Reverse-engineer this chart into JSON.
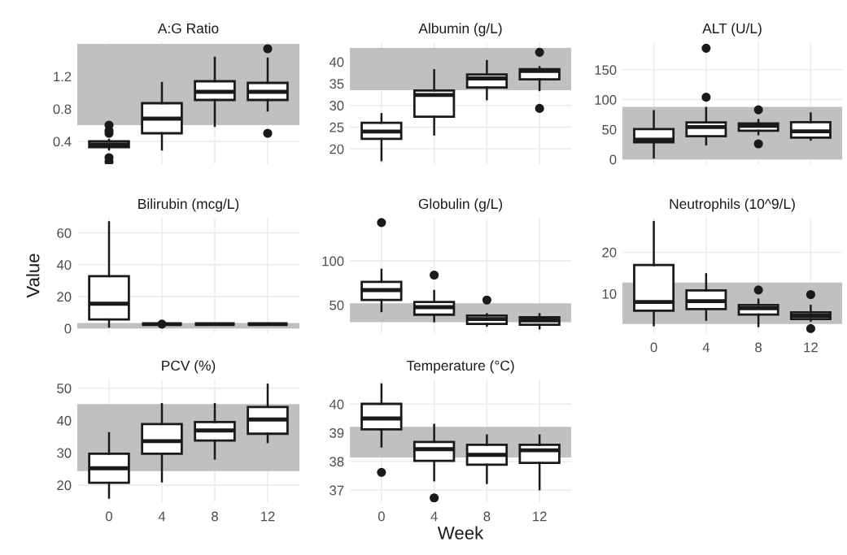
{
  "chart_data": [
    {
      "type": "box",
      "title": "A:G Ratio",
      "categories": [
        "0",
        "4",
        "8",
        "12"
      ],
      "ylim": [
        0.12,
        1.62
      ],
      "yticks": [
        0.4,
        0.8,
        1.2
      ],
      "tick_labels": "y",
      "grid": true,
      "bands": [
        {
          "axis": "y",
          "from": 0.6,
          "to": 1.6,
          "color": "#c0c0c0"
        }
      ],
      "boxes": [
        {
          "low": 0.3,
          "q1": 0.33,
          "median": 0.36,
          "q3": 0.4,
          "high": 0.42,
          "outliers": [
            0.15,
            0.2,
            0.5,
            0.53,
            0.6
          ]
        },
        {
          "low": 0.3,
          "q1": 0.5,
          "median": 0.68,
          "q3": 0.87,
          "high": 1.12
        },
        {
          "low": 0.59,
          "q1": 0.91,
          "median": 1.01,
          "q3": 1.14,
          "high": 1.43
        },
        {
          "low": 0.78,
          "q1": 0.91,
          "median": 1.01,
          "q3": 1.12,
          "high": 1.42,
          "outliers": [
            0.5,
            1.54
          ]
        }
      ]
    },
    {
      "type": "box",
      "title": "Albumin (g/L)",
      "categories": [
        "0",
        "4",
        "8",
        "12"
      ],
      "ylim": [
        16.5,
        44.5
      ],
      "yticks": [
        20,
        25,
        30,
        35,
        40
      ],
      "tick_labels": "y",
      "grid": true,
      "bands": [
        {
          "axis": "y",
          "from": 33.5,
          "to": 43.2,
          "color": "#c0c0c0"
        }
      ],
      "boxes": [
        {
          "low": 17.4,
          "q1": 22.3,
          "median": 24,
          "q3": 26,
          "high": 28
        },
        {
          "low": 23.3,
          "q1": 27.4,
          "median": 32.4,
          "q3": 33.4,
          "high": 38.1
        },
        {
          "low": 31.4,
          "q1": 34.1,
          "median": 36.2,
          "q3": 37.1,
          "high": 40.2
        },
        {
          "low": 33.5,
          "q1": 36,
          "median": 37.9,
          "q3": 38.3,
          "high": 38.8,
          "outliers": [
            29.3,
            42.2
          ]
        }
      ]
    },
    {
      "type": "box",
      "title": "ALT (U/L)",
      "categories": [
        "0",
        "4",
        "8",
        "12"
      ],
      "ylim": [
        -8,
        196
      ],
      "yticks": [
        0,
        50,
        100,
        150
      ],
      "tick_labels": "y",
      "grid": true,
      "bands": [
        {
          "axis": "y",
          "from": 0,
          "to": 88,
          "color": "#c0c0c0"
        }
      ],
      "boxes": [
        {
          "low": 3,
          "q1": 28.5,
          "median": 33,
          "q3": 50.7,
          "high": 80.7
        },
        {
          "low": 25,
          "q1": 38.7,
          "median": 54,
          "q3": 62,
          "high": 86,
          "outliers": [
            104,
            186
          ]
        },
        {
          "low": 42,
          "q1": 48,
          "median": 56,
          "q3": 60,
          "high": 66,
          "outliers": [
            26,
            83
          ]
        },
        {
          "low": 33,
          "q1": 36.4,
          "median": 47,
          "q3": 62.3,
          "high": 77
        }
      ]
    },
    {
      "type": "box",
      "title": "Bilirubin (mcg/L)",
      "ylabel": "Value",
      "categories": [
        "0",
        "4",
        "8",
        "12"
      ],
      "ylim": [
        -3,
        69.5
      ],
      "yticks": [
        0,
        20,
        40,
        60
      ],
      "tick_labels": "y",
      "grid": true,
      "bands": [
        {
          "axis": "y",
          "from": 0,
          "to": 3.4,
          "color": "#c0c0c0"
        }
      ],
      "boxes": [
        {
          "low": 1.1,
          "q1": 5.6,
          "median": 15.5,
          "q3": 32.8,
          "high": 66.7
        },
        {
          "low": 2.7,
          "q1": 2.7,
          "median": 2.7,
          "q3": 2.7,
          "high": 2.7,
          "outliers": [
            2.7
          ]
        },
        {
          "low": 2.7,
          "q1": 2.7,
          "median": 2.7,
          "q3": 2.7,
          "high": 2.7
        },
        {
          "low": 2.7,
          "q1": 2.7,
          "median": 2.7,
          "q3": 2.7,
          "high": 2.7
        }
      ]
    },
    {
      "type": "box",
      "title": "Globulin (g/L)",
      "categories": [
        "0",
        "4",
        "8",
        "12"
      ],
      "ylim": [
        18,
        149
      ],
      "yticks": [
        50,
        100
      ],
      "tick_labels": "y",
      "grid": true,
      "bands": [
        {
          "axis": "y",
          "from": 30.5,
          "to": 52,
          "color": "#c0c0c0"
        }
      ],
      "boxes": [
        {
          "low": 43,
          "q1": 55.8,
          "median": 66.9,
          "q3": 76.2,
          "high": 90,
          "outliers": [
            143.6
          ]
        },
        {
          "low": 31.5,
          "q1": 39,
          "median": 47.5,
          "q3": 53.5,
          "high": 66,
          "outliers": [
            84
          ]
        },
        {
          "low": 26.5,
          "q1": 28.5,
          "median": 34,
          "q3": 37.9,
          "high": 39.6,
          "outliers": [
            55.6
          ]
        },
        {
          "low": 23.4,
          "q1": 27.6,
          "median": 32.5,
          "q3": 36,
          "high": 39.6
        }
      ]
    },
    {
      "type": "box",
      "title": "Neutrophils (10^9/L)",
      "categories": [
        "0",
        "4",
        "8",
        "12"
      ],
      "ylim": [
        0.5,
        28.3
      ],
      "yticks": [
        10,
        20
      ],
      "grid": true,
      "bands": [
        {
          "axis": "y",
          "from": 2.7,
          "to": 12.7,
          "color": "#c0c0c0"
        }
      ],
      "boxes": [
        {
          "low": 2.4,
          "q1": 5.9,
          "median": 8,
          "q3": 16.9,
          "high": 27.3
        },
        {
          "low": 3.7,
          "q1": 6.3,
          "median": 8.2,
          "q3": 10.8,
          "high": 14.7
        },
        {
          "low": 2.2,
          "q1": 5,
          "median": 6.5,
          "q3": 7.3,
          "high": 8.6,
          "outliers": [
            10.9
          ]
        },
        {
          "low": 3.5,
          "q1": 3.9,
          "median": 4.7,
          "q3": 5.5,
          "high": 7.1,
          "outliers": [
            1.6,
            9.8
          ]
        }
      ]
    },
    {
      "type": "box",
      "title": "PCV (%)",
      "categories": [
        "0",
        "4",
        "8",
        "12"
      ],
      "ylim": [
        14.7,
        52.7
      ],
      "yticks": [
        20,
        30,
        40,
        50
      ],
      "grid": true,
      "bands": [
        {
          "axis": "y",
          "from": 24.3,
          "to": 45.1,
          "color": "#c0c0c0"
        }
      ],
      "boxes": [
        {
          "low": 16.1,
          "q1": 20.7,
          "median": 25.2,
          "q3": 29.7,
          "high": 36.1
        },
        {
          "low": 21.1,
          "q1": 29.7,
          "median": 33.6,
          "q3": 38.9,
          "high": 45.1
        },
        {
          "low": 28.2,
          "q1": 33.8,
          "median": 36.9,
          "q3": 39.5,
          "high": 45.1
        },
        {
          "low": 33.3,
          "q1": 35.9,
          "median": 40.3,
          "q3": 44.2,
          "high": 51.1
        }
      ]
    },
    {
      "type": "box",
      "title": "Temperature (°C)",
      "xlabel": "Week",
      "categories": [
        "0",
        "4",
        "8",
        "12"
      ],
      "ylim": [
        36.58,
        40.86
      ],
      "yticks": [
        37,
        38,
        39,
        40
      ],
      "grid": true,
      "bands": [
        {
          "axis": "y",
          "from": 38.14,
          "to": 39.21,
          "color": "#c0c0c0"
        }
      ],
      "boxes": [
        {
          "low": 38.52,
          "q1": 39.12,
          "median": 39.5,
          "q3": 40.01,
          "high": 40.69,
          "outliers": [
            37.62
          ]
        },
        {
          "low": 37.34,
          "q1": 38.02,
          "median": 38.43,
          "q3": 38.68,
          "high": 39.28,
          "outliers": [
            36.73
          ]
        },
        {
          "low": 37.25,
          "q1": 37.89,
          "median": 38.23,
          "q3": 38.58,
          "high": 38.91
        },
        {
          "low": 37.03,
          "q1": 37.95,
          "median": 38.39,
          "q3": 38.58,
          "high": 38.91
        }
      ]
    }
  ]
}
